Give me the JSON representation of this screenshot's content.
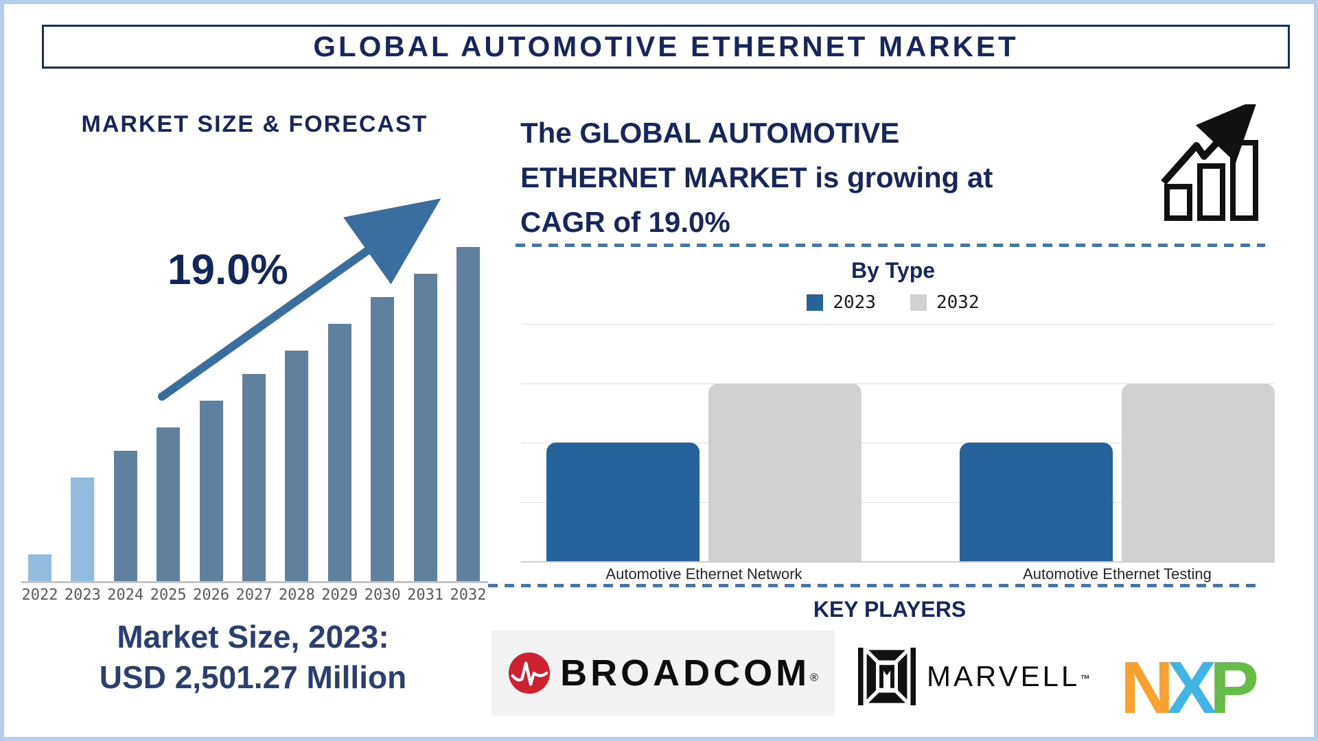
{
  "page": {
    "title_bar": "GLOBAL AUTOMOTIVE ETHERNET MARKET",
    "border_color": "#B5CEEC",
    "accent_navy": "#17265C",
    "dashed_divider_color": "#3B79B4"
  },
  "left_panel": {
    "heading": "MARKET SIZE & FORECAST",
    "cagr_label": "19.0%",
    "market_size_caption": {
      "line1": "Market Size, 2023:",
      "line2": "USD 2,501.27 Million"
    }
  },
  "right_panel": {
    "growth_statement": "The GLOBAL AUTOMOTIVE ETHERNET MARKET is growing at CAGR of 19.0%",
    "key_players": {
      "heading": "KEY PLAYERS",
      "companies": [
        {
          "name": "BROADCOM",
          "mark": "®"
        },
        {
          "name": "MARVELL",
          "mark": "™"
        },
        {
          "name": "NXP",
          "letters": [
            {
              "ch": "N",
              "color": "#F8A12E"
            },
            {
              "ch": "X",
              "color": "#3FB4E5"
            },
            {
              "ch": "P",
              "color": "#65BC46"
            }
          ]
        }
      ]
    }
  },
  "chart_data": [
    {
      "id": "market_size_forecast",
      "type": "bar",
      "title": "MARKET SIZE & FORECAST",
      "categories": [
        "2022",
        "2023",
        "2024",
        "2025",
        "2026",
        "2027",
        "2028",
        "2029",
        "2030",
        "2031",
        "2032"
      ],
      "values_relative_pct": [
        8,
        31,
        39,
        46,
        54,
        62,
        69,
        77,
        85,
        92,
        100
      ],
      "annotations": {
        "cagr": "19.0%",
        "market_size_2023": "USD 2,501.27 Million"
      },
      "highlight_years": [
        "2022",
        "2023"
      ],
      "highlight_color": "#92BBE0",
      "bar_color": "#60809F",
      "x_label_color": "#595959",
      "baseline_color": "#C6C6C6",
      "ylabel": "",
      "xlabel": ""
    },
    {
      "id": "by_type",
      "type": "grouped_bar",
      "title": "By Type",
      "categories": [
        "Automotive Ethernet Network",
        "Automotive Ethernet Testing"
      ],
      "series": [
        {
          "name": "2023",
          "color": "#26639C",
          "values": [
            2,
            2
          ]
        },
        {
          "name": "2032",
          "color": "#D1D1D1",
          "values": [
            3,
            3
          ]
        }
      ],
      "ylim": [
        0,
        4
      ],
      "gridlines": true,
      "legend_position": "top",
      "note": "values are relative gridline units; no y-axis tick labels shown"
    }
  ]
}
